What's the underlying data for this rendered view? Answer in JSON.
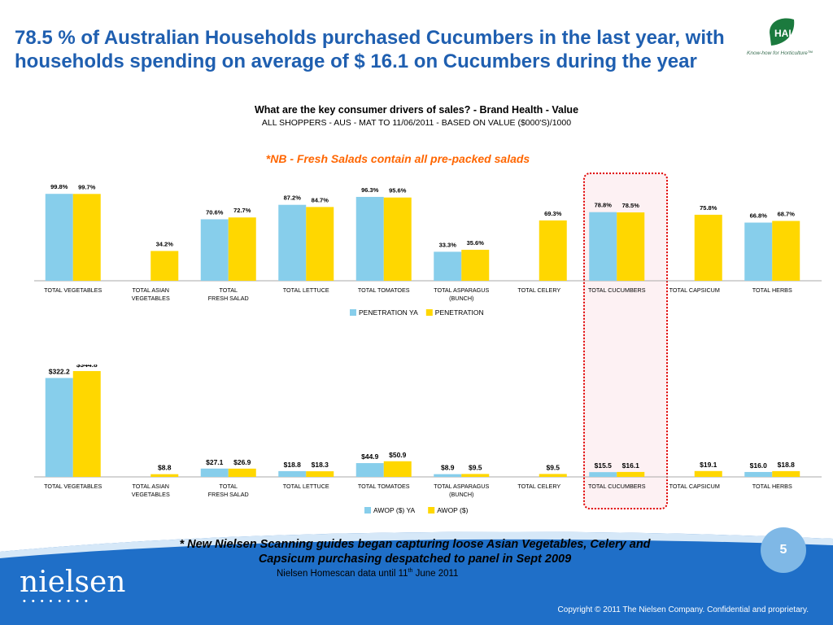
{
  "slide": {
    "title": "78.5 % of Australian Households purchased Cucumbers in the last year, with households spending on average of $ 16.1 on Cucumbers during the year",
    "logo_text": "HAL",
    "logo_tagline": "Know-how for Horticulture™",
    "subtitle": "What are the key consumer drivers of sales? - Brand Health - Value",
    "subtitle2": "ALL SHOPPERS - AUS - MAT TO 11/06/2011 - BASED ON VALUE ($000'S)/1000",
    "nb_note": "*NB - Fresh Salads contain all pre-packed salads",
    "footer_note": "* New Nielsen Scanning guides began capturing loose Asian Vegetables, Celery and Capsicum purchasing despatched to panel in Sept 2009",
    "footer_source_pre": "Nielsen Homescan data until 11",
    "footer_source_sup": "th",
    "footer_source_post": " June 2011",
    "page_number": "5",
    "brand": "nielsen",
    "brand_dots": "••••••••",
    "copyright": "Copyright © 2011 The Nielsen Company. Confidential and proprietary."
  },
  "colors": {
    "title": "#1f5fb0",
    "nb": "#ff6600",
    "series_ya": "#87ceeb",
    "series_cur": "#ffd700",
    "footer": "#1f6fc8",
    "highlight_border": "#e00000"
  },
  "chart_data": [
    {
      "type": "bar",
      "categories": [
        "TOTAL VEGETABLES",
        "TOTAL ASIAN VEGETABLES",
        "TOTAL FRESH SALAD",
        "TOTAL LETTUCE",
        "TOTAL TOMATOES",
        "TOTAL ASPARAGUS (BUNCH)",
        "TOTAL CELERY",
        "TOTAL CUCUMBERS",
        "TOTAL CAPSICUM",
        "TOTAL HERBS"
      ],
      "series": [
        {
          "name": "PENETRATION YA",
          "values": [
            99.8,
            null,
            70.6,
            87.2,
            96.3,
            33.3,
            null,
            78.8,
            null,
            66.8
          ],
          "labels": [
            "99.8%",
            "",
            "70.6%",
            "87.2%",
            "96.3%",
            "33.3%",
            "",
            "78.8%",
            "",
            "66.8%"
          ]
        },
        {
          "name": "PENETRATION",
          "values": [
            99.7,
            34.2,
            72.7,
            84.7,
            95.6,
            35.6,
            69.3,
            78.5,
            75.8,
            68.7
          ],
          "labels": [
            "99.7%",
            "34.2%",
            "72.7%",
            "84.7%",
            "95.6%",
            "35.6%",
            "69.3%",
            "78.5%",
            "75.8%",
            "68.7%"
          ]
        }
      ],
      "ylim": [
        0,
        100
      ]
    },
    {
      "type": "bar",
      "categories": [
        "TOTAL VEGETABLES",
        "TOTAL ASIAN VEGETABLES",
        "TOTAL FRESH SALAD",
        "TOTAL LETTUCE",
        "TOTAL TOMATOES",
        "TOTAL ASPARAGUS (BUNCH)",
        "TOTAL CELERY",
        "TOTAL CUCUMBERS",
        "TOTAL CAPSICUM",
        "TOTAL HERBS"
      ],
      "series": [
        {
          "name": "AWOP ($) YA",
          "values": [
            322.2,
            null,
            27.1,
            18.8,
            44.9,
            8.9,
            null,
            15.5,
            null,
            16.0
          ],
          "labels": [
            "$322.2",
            "",
            "$27.1",
            "$18.8",
            "$44.9",
            "$8.9",
            "",
            "$15.5",
            "",
            "$16.0"
          ]
        },
        {
          "name": "AWOP ($)",
          "values": [
            344.8,
            8.8,
            26.9,
            18.3,
            50.9,
            9.5,
            9.5,
            16.1,
            19.1,
            18.8
          ],
          "labels": [
            "$344.8",
            "$8.8",
            "$26.9",
            "$18.3",
            "$50.9",
            "$9.5",
            "$9.5",
            "$16.1",
            "$19.1",
            "$18.8"
          ]
        }
      ],
      "ylim": [
        0,
        350
      ]
    }
  ]
}
